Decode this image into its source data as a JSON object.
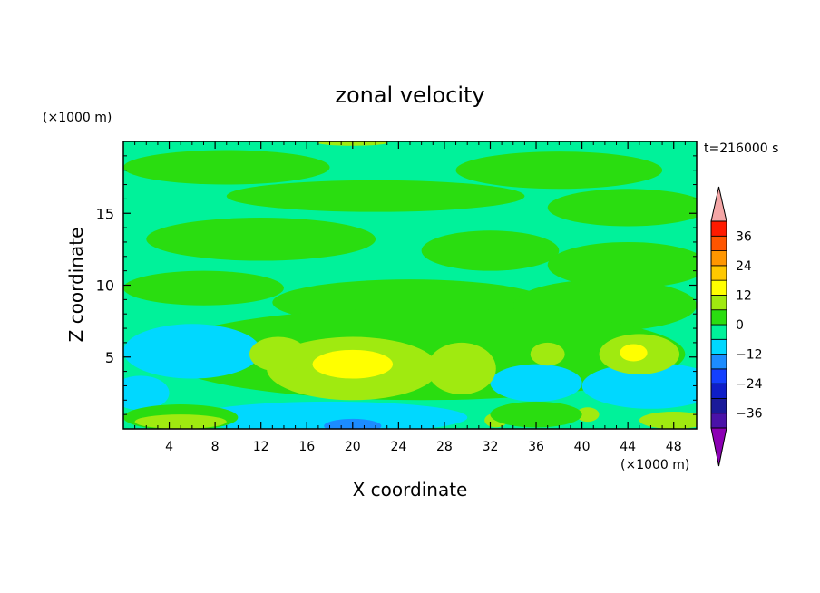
{
  "chart_data": {
    "type": "heatmap",
    "title": "zonal velocity",
    "xlabel": "X coordinate",
    "ylabel": "Z coordinate",
    "x_unit": "(×1000 m)",
    "y_unit": "(×1000 m)",
    "time_label": "t=216000 s",
    "xlim": [
      0,
      50
    ],
    "ylim": [
      0,
      20
    ],
    "x_ticks": [
      4,
      8,
      12,
      16,
      20,
      24,
      28,
      32,
      36,
      40,
      44,
      48
    ],
    "y_ticks": [
      5,
      10,
      15
    ],
    "colorbar": {
      "min": -42,
      "max": 42,
      "step": 6,
      "ticks": [
        36,
        24,
        12,
        0,
        -12,
        -24,
        -36
      ],
      "tick_labels": [
        "36",
        "24",
        "12",
        "0",
        "−12",
        "−24",
        "−36"
      ],
      "over_color": "#f4a6a6",
      "under_color": "#8c00b4",
      "levels": [
        {
          "lo": -42,
          "hi": -36,
          "color": "#4a12a8"
        },
        {
          "lo": -36,
          "hi": -30,
          "color": "#1a1a9a"
        },
        {
          "lo": -30,
          "hi": -24,
          "color": "#0f1ec8"
        },
        {
          "lo": -24,
          "hi": -18,
          "color": "#1440ff"
        },
        {
          "lo": -18,
          "hi": -12,
          "color": "#1c8cff"
        },
        {
          "lo": -12,
          "hi": -6,
          "color": "#00d8ff"
        },
        {
          "lo": -6,
          "hi": 0,
          "color": "#00f29a"
        },
        {
          "lo": 0,
          "hi": 6,
          "color": "#2add10"
        },
        {
          "lo": 6,
          "hi": 12,
          "color": "#a0ea10"
        },
        {
          "lo": 12,
          "hi": 18,
          "color": "#ffff00"
        },
        {
          "lo": 18,
          "hi": 24,
          "color": "#ffc800"
        },
        {
          "lo": 24,
          "hi": 30,
          "color": "#ff9600"
        },
        {
          "lo": 30,
          "hi": 36,
          "color": "#ff5500"
        },
        {
          "lo": 36,
          "hi": 42,
          "color": "#ff1a00"
        }
      ]
    },
    "field_regions": [
      {
        "shape": "rect",
        "x0": 0,
        "x1": 50,
        "z0": 0,
        "z1": 20,
        "value": -3
      },
      {
        "shape": "ellipse",
        "cx": 9,
        "cz": 18.2,
        "rx": 9,
        "rz": 1.2,
        "value": 3
      },
      {
        "shape": "ellipse",
        "cx": 38,
        "cz": 18,
        "rx": 9,
        "rz": 1.3,
        "value": 3
      },
      {
        "shape": "ellipse",
        "cx": 22,
        "cz": 16.2,
        "rx": 13,
        "rz": 1.1,
        "value": 3
      },
      {
        "shape": "ellipse",
        "cx": 44,
        "cz": 15.4,
        "rx": 7,
        "rz": 1.3,
        "value": 3
      },
      {
        "shape": "ellipse",
        "cx": 12,
        "cz": 13.2,
        "rx": 10,
        "rz": 1.5,
        "value": 3
      },
      {
        "shape": "ellipse",
        "cx": 32,
        "cz": 12.4,
        "rx": 6,
        "rz": 1.4,
        "value": 3
      },
      {
        "shape": "ellipse",
        "cx": 44,
        "cz": 11.4,
        "rx": 7,
        "rz": 1.6,
        "value": 3
      },
      {
        "shape": "ellipse",
        "cx": 7,
        "cz": 9.8,
        "rx": 7,
        "rz": 1.2,
        "value": 3
      },
      {
        "shape": "ellipse",
        "cx": 25,
        "cz": 8.8,
        "rx": 12,
        "rz": 1.6,
        "value": 3
      },
      {
        "shape": "ellipse",
        "cx": 42,
        "cz": 8.6,
        "rx": 8,
        "rz": 1.8,
        "value": 3
      },
      {
        "shape": "ellipse",
        "cx": 26,
        "cz": 5.2,
        "rx": 23,
        "rz": 3.2,
        "value": 3
      },
      {
        "shape": "ellipse",
        "cx": 6,
        "cz": 5.4,
        "rx": 6,
        "rz": 1.9,
        "value": -9
      },
      {
        "shape": "ellipse",
        "cx": 46,
        "cz": 3.0,
        "rx": 6,
        "rz": 1.6,
        "value": -9
      },
      {
        "shape": "ellipse",
        "cx": 36,
        "cz": 3.2,
        "rx": 4,
        "rz": 1.3,
        "value": -9
      },
      {
        "shape": "ellipse",
        "cx": 1.5,
        "cz": 2.5,
        "rx": 2.5,
        "rz": 1.2,
        "value": -9
      },
      {
        "shape": "ellipse",
        "cx": 20,
        "cz": 4.2,
        "rx": 7.5,
        "rz": 2.2,
        "value": 9
      },
      {
        "shape": "ellipse",
        "cx": 13.5,
        "cz": 5.2,
        "rx": 2.5,
        "rz": 1.2,
        "value": 9
      },
      {
        "shape": "ellipse",
        "cx": 29.5,
        "cz": 4.2,
        "rx": 3,
        "rz": 1.8,
        "value": 9
      },
      {
        "shape": "ellipse",
        "cx": 45,
        "cz": 5.2,
        "rx": 3.5,
        "rz": 1.4,
        "value": 9
      },
      {
        "shape": "ellipse",
        "cx": 37,
        "cz": 5.2,
        "rx": 1.5,
        "rz": 0.8,
        "value": 9
      },
      {
        "shape": "ellipse",
        "cx": 20,
        "cz": 4.5,
        "rx": 3.5,
        "rz": 1.0,
        "value": 15
      },
      {
        "shape": "ellipse",
        "cx": 44.5,
        "cz": 5.3,
        "rx": 1.2,
        "rz": 0.6,
        "value": 15
      },
      {
        "shape": "ellipse",
        "cx": 18,
        "cz": 0.8,
        "rx": 12,
        "rz": 1.1,
        "value": -9
      },
      {
        "shape": "ellipse",
        "cx": 20,
        "cz": 0.2,
        "rx": 2.5,
        "rz": 0.5,
        "value": -15
      },
      {
        "shape": "ellipse",
        "cx": 5,
        "cz": 0.8,
        "rx": 5,
        "rz": 0.9,
        "value": 3
      },
      {
        "shape": "ellipse",
        "cx": 5,
        "cz": 0.5,
        "rx": 4,
        "rz": 0.5,
        "value": 9
      },
      {
        "shape": "ellipse",
        "cx": 48,
        "cz": 0.6,
        "rx": 3,
        "rz": 0.6,
        "value": 9
      },
      {
        "shape": "ellipse",
        "cx": 32.5,
        "cz": 0.6,
        "rx": 1,
        "rz": 0.5,
        "value": 9
      },
      {
        "shape": "ellipse",
        "cx": 40.5,
        "cz": 1.0,
        "rx": 1,
        "rz": 0.5,
        "value": 9
      },
      {
        "shape": "ellipse",
        "cx": 36,
        "cz": 1.0,
        "rx": 4,
        "rz": 0.9,
        "value": 3
      },
      {
        "shape": "ellipse",
        "cx": 20,
        "cz": 19.9,
        "rx": 3,
        "rz": 0.2,
        "value": 9
      }
    ]
  }
}
